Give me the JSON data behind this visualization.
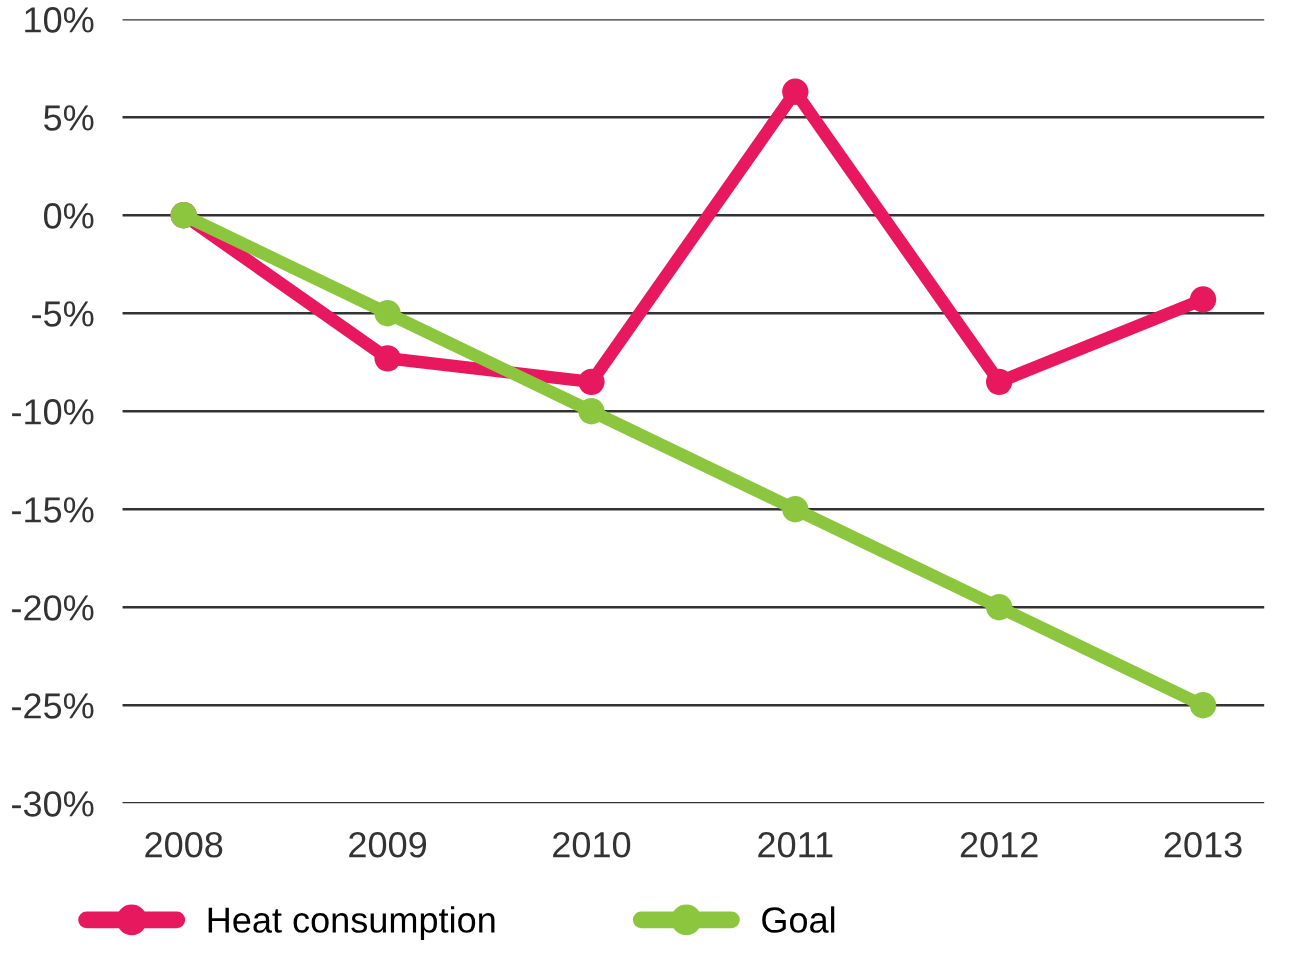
{
  "chart_data": {
    "type": "line",
    "categories": [
      "2008",
      "2009",
      "2010",
      "2011",
      "2012",
      "2013"
    ],
    "series": [
      {
        "name": "Heat consumption",
        "color": "#e8185e",
        "values": [
          0,
          -7.3,
          -8.5,
          6.3,
          -8.5,
          -4.3
        ]
      },
      {
        "name": "Goal",
        "color": "#8cc63f",
        "values": [
          0,
          -5,
          -10,
          -15,
          -20,
          -25
        ]
      }
    ],
    "ylim": [
      -30,
      10
    ],
    "yticks": [
      {
        "value": -30,
        "label": "-30%"
      },
      {
        "value": -25,
        "label": "-25%"
      },
      {
        "value": -20,
        "label": "-20%"
      },
      {
        "value": -15,
        "label": "-15%"
      },
      {
        "value": -10,
        "label": "-10%"
      },
      {
        "value": -5,
        "label": "-5%"
      },
      {
        "value": 0,
        "label": "0%"
      },
      {
        "value": 5,
        "label": "5%"
      },
      {
        "value": 10,
        "label": "10%"
      }
    ],
    "grid": "y",
    "legend": "bottom",
    "marker": "circle",
    "line_style": "solid"
  }
}
